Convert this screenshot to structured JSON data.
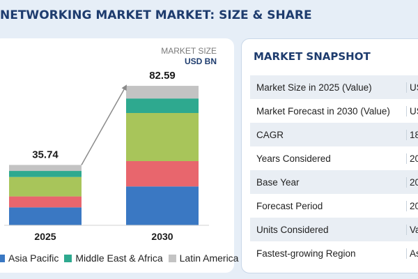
{
  "header": {
    "title": "NETWORKING MARKET MARKET: SIZE & SHARE"
  },
  "units": {
    "line1": "MARKET SIZE",
    "line2": "USD BN"
  },
  "colors": {
    "asia_pacific": "#3a78c3",
    "segment_red": "#e8666d",
    "segment_green": "#a8c55a",
    "middle_east_africa": "#2ea98f",
    "latin_america": "#c3c3c3",
    "arrow": "#8a8a8a",
    "title": "#1e3c6e"
  },
  "chart_data": {
    "type": "bar",
    "stacked": true,
    "categories": [
      "2025",
      "2030"
    ],
    "totals": [
      35.74,
      82.59
    ],
    "series": [
      {
        "name": "Asia Pacific",
        "color_key": "asia_pacific",
        "values": [
          10.6,
          23.0
        ]
      },
      {
        "color_key": "segment_red",
        "values": [
          6.5,
          15.0
        ]
      },
      {
        "color_key": "segment_green",
        "values": [
          11.5,
          28.5
        ]
      },
      {
        "name": "Middle East & Africa",
        "color_key": "middle_east_africa",
        "values": [
          3.6,
          8.6
        ]
      },
      {
        "name": "Latin America",
        "color_key": "latin_america",
        "values": [
          3.54,
          7.49
        ]
      }
    ],
    "ylim": [
      0,
      95
    ],
    "grid": false,
    "xlabel": "",
    "ylabel": ""
  },
  "legend": [
    {
      "label": "Asia Pacific",
      "color_key": "asia_pacific"
    },
    {
      "label": "Middle East & Africa",
      "color_key": "middle_east_africa"
    },
    {
      "label": "Latin America",
      "color_key": "latin_america"
    }
  ],
  "snapshot": {
    "title": "MARKET SNAPSHOT",
    "rows": [
      {
        "label": "Market Size in 2025 (Value)",
        "value": "US"
      },
      {
        "label": "Market Forecast in 2030 (Value)",
        "value": "US"
      },
      {
        "label": "CAGR",
        "value": "18"
      },
      {
        "label": "Years Considered",
        "value": "20"
      },
      {
        "label": "Base Year",
        "value": "20"
      },
      {
        "label": "Forecast Period",
        "value": "20"
      },
      {
        "label": "Units Considered",
        "value": "Va"
      },
      {
        "label": "Fastest-growing Region",
        "value": "As"
      }
    ]
  }
}
